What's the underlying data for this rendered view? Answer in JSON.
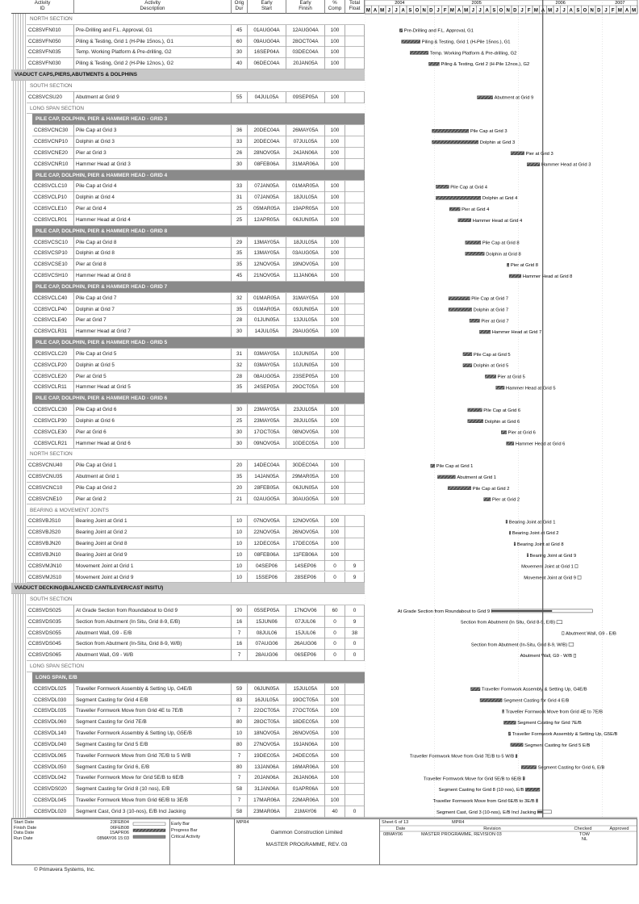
{
  "header": {
    "columns": [
      "Activity ID",
      "Activity Description",
      "Orig Dur",
      "Early Start",
      "Early Finish",
      "% Comp",
      "Total Float"
    ],
    "timeline": [
      {
        "year": "2004",
        "months": [
          "M",
          "A",
          "M",
          "J",
          "J",
          "A",
          "S",
          "O",
          "N",
          "D"
        ]
      },
      {
        "year": "2005",
        "months": [
          "J",
          "F",
          "M",
          "A",
          "M",
          "J",
          "J",
          "A",
          "S",
          "O",
          "N",
          "D"
        ]
      },
      {
        "year": "2006",
        "months": [
          "J",
          "F",
          "M",
          "A",
          "M",
          "J",
          "J",
          "A",
          "S",
          "O",
          "N",
          "D"
        ]
      },
      {
        "year": "2007",
        "months": [
          "J",
          "F",
          "M",
          "A",
          "M"
        ]
      }
    ]
  },
  "rows": [
    {
      "level": 3,
      "text": "NORTH SECTION"
    },
    {
      "id": "CC8SVFN010",
      "description": "Pre-Drilling and F.L. Approval, G1",
      "dur": 45,
      "start": "01AUG04A",
      "finish": "12AUG04A",
      "comp": 100,
      "float": null
    },
    {
      "id": "CC8SVFN050",
      "description": "Piling & Testing,  Grid 1 (H-Pile 15nos.), G1",
      "dur": 60,
      "start": "09AUG04A",
      "finish": "28OCT04A",
      "comp": 100,
      "float": null
    },
    {
      "id": "CC8SVFN035",
      "description": "Temp. Working Platform & Pre-drilling, G2",
      "dur": 30,
      "start": "16SEP04A",
      "finish": "03DEC04A",
      "comp": 100,
      "float": null
    },
    {
      "id": "CC8SVFN030",
      "description": "Piling & Testing, Grid 2 (H-Pile 12nos.), G2",
      "dur": 40,
      "start": "06DEC04A",
      "finish": "20JAN05A",
      "comp": 100,
      "float": null
    },
    {
      "level": 1,
      "text": "VIADUCT CAPS,PIERS,ABUTMENTS & DOLPHINS"
    },
    {
      "level": 3,
      "text": "SOUTH SECTION"
    },
    {
      "id": "CC8SVCSU20",
      "description": "Abutment at Grid 9",
      "dur": 55,
      "start": "04JUL05A",
      "finish": "09SEP05A",
      "comp": 100,
      "float": null
    },
    {
      "level": 3,
      "text": "LONG SPAN SECTION"
    },
    {
      "level": 2,
      "text": "PILE CAP, DOLPHIN, PIER & HAMMER HEAD - GRID 3"
    },
    {
      "id": "CC8SVCNC30",
      "description": "Pile Cap at Grid 3",
      "dur": 36,
      "start": "20DEC04A",
      "finish": "26MAY05A",
      "comp": 100,
      "float": null
    },
    {
      "id": "CC8SVCNP10",
      "description": "Dolphin at Grid 3",
      "dur": 33,
      "start": "20DEC04A",
      "finish": "07JUL05A",
      "comp": 100,
      "float": null
    },
    {
      "id": "CC8SVCNE20",
      "description": "Pier at Grid 3",
      "dur": 26,
      "start": "28NOV05A",
      "finish": "24JAN06A",
      "comp": 100,
      "float": null
    },
    {
      "id": "CC8SVCNR10",
      "description": "Hammer Head at Grid 3",
      "dur": 30,
      "start": "08FEB06A",
      "finish": "31MAR06A",
      "comp": 100,
      "float": null
    },
    {
      "level": 2,
      "text": "PILE CAP, DOLPHIN, PIER & HAMMER HEAD - GRID 4"
    },
    {
      "id": "CC8SVCLC10",
      "description": "Pile Cap at Grid 4",
      "dur": 33,
      "start": "07JAN05A",
      "finish": "01MAR05A",
      "comp": 100,
      "float": null
    },
    {
      "id": "CC8SVCLP10",
      "description": "Dolphin at Grid 4",
      "dur": 31,
      "start": "07JAN05A",
      "finish": "18JUL05A",
      "comp": 100,
      "float": null
    },
    {
      "id": "CC8SVCLE10",
      "description": "Pier at Grid 4",
      "dur": 25,
      "start": "05MAR05A",
      "finish": "19APR05A",
      "comp": 100,
      "float": null
    },
    {
      "id": "CC8SVCLR01",
      "description": "Hammer Head at Grid 4",
      "dur": 25,
      "start": "12APR05A",
      "finish": "06JUN05A",
      "comp": 100,
      "float": null
    },
    {
      "level": 2,
      "text": "PILE CAP, DOLPHIN, PIER & HAMMER HEAD - GRID 8"
    },
    {
      "id": "CC8SVCSC10",
      "description": "Pile Cap at Grid 8",
      "dur": 29,
      "start": "13MAY05A",
      "finish": "18JUL05A",
      "comp": 100,
      "float": null
    },
    {
      "id": "CC8SVCSP10",
      "description": "Dolphin at Grid 8",
      "dur": 35,
      "start": "13MAY05A",
      "finish": "03AUG05A",
      "comp": 100,
      "float": null
    },
    {
      "id": "CC8SVCSE10",
      "description": "Pier at Grid 8",
      "dur": 35,
      "start": "12NOV05A",
      "finish": "19NOV05A",
      "comp": 100,
      "float": null
    },
    {
      "id": "CC8SVCSH10",
      "description": "Hammer Head at Grid 8",
      "dur": 45,
      "start": "21NOV05A",
      "finish": "11JAN06A",
      "comp": 100,
      "float": null
    },
    {
      "level": 2,
      "text": "PILE CAP, DOLPHIN, PIER & HAMMER HEAD - GRID 7"
    },
    {
      "id": "CC8SVCLC40",
      "description": "Pile Cap at Grid 7",
      "dur": 32,
      "start": "01MAR05A",
      "finish": "31MAY05A",
      "comp": 100,
      "float": null
    },
    {
      "id": "CC8SVCLP40",
      "description": "Dolphin at Grid 7",
      "dur": 35,
      "start": "01MAR05A",
      "finish": "09JUN05A",
      "comp": 100,
      "float": null
    },
    {
      "id": "CC8SVCLE40",
      "description": "Pier at Grid 7",
      "dur": 28,
      "start": "01JUN05A",
      "finish": "13JUL05A",
      "comp": 100,
      "float": null
    },
    {
      "id": "CC8SVCLR31",
      "description": "Hammer Head at Grid 7",
      "dur": 30,
      "start": "14JUL05A",
      "finish": "29AUG05A",
      "comp": 100,
      "float": null
    },
    {
      "level": 2,
      "text": "PILE CAP, DOLPHIN, PIER & HAMMER HEAD - GRID 5"
    },
    {
      "id": "CC8SVCLC20",
      "description": "Pile Cap at Grid 5",
      "dur": 31,
      "start": "03MAY05A",
      "finish": "10JUN05A",
      "comp": 100,
      "float": null
    },
    {
      "id": "CC8SVCLP20",
      "description": "Dolphin at Grid 5",
      "dur": 32,
      "start": "03MAY05A",
      "finish": "10JUN05A",
      "comp": 100,
      "float": null
    },
    {
      "id": "CC8SVCLE20",
      "description": "Pier at Grid 5",
      "dur": 28,
      "start": "08AUG05A",
      "finish": "23SEP05A",
      "comp": 100,
      "float": null
    },
    {
      "id": "CC8SVCLR11",
      "description": "Hammer Head at Grid 5",
      "dur": 35,
      "start": "24SEP05A",
      "finish": "29OCT05A",
      "comp": 100,
      "float": null
    },
    {
      "level": 2,
      "text": "PILE CAP, DOLPHIN, PIER & HAMMER HEAD - GRID 6"
    },
    {
      "id": "CC8SVCLC30",
      "description": "Pile Cap at Grid 6",
      "dur": 30,
      "start": "23MAY05A",
      "finish": "23JUL05A",
      "comp": 100,
      "float": null
    },
    {
      "id": "CC8SVCLP30",
      "description": "Dolphin at Grid 6",
      "dur": 25,
      "start": "23MAY05A",
      "finish": "28JUL05A",
      "comp": 100,
      "float": null
    },
    {
      "id": "CC8SVCLE30",
      "description": "Pier at Grid 6",
      "dur": 30,
      "start": "17OCT05A",
      "finish": "08NOV05A",
      "comp": 100,
      "float": null
    },
    {
      "id": "CC8SVCLR21",
      "description": "Hammer Head at Grid 6",
      "dur": 30,
      "start": "09NOV05A",
      "finish": "10DEC05A",
      "comp": 100,
      "float": null
    },
    {
      "level": 3,
      "text": "NORTH SECTION"
    },
    {
      "id": "CC8SVCNU40",
      "description": "Pile Cap at Grid 1",
      "dur": 20,
      "start": "14DEC04A",
      "finish": "30DEC04A",
      "comp": 100,
      "float": null
    },
    {
      "id": "CC8SVCNU35",
      "description": "Abutment at Grid 1",
      "dur": 35,
      "start": "14JAN05A",
      "finish": "29MAR05A",
      "comp": 100,
      "float": null
    },
    {
      "id": "CC8SVCNC10",
      "description": "Pile Cap at Grid 2",
      "dur": 20,
      "start": "28FEB05A",
      "finish": "06JUN05A",
      "comp": 100,
      "float": null
    },
    {
      "id": "CC8SVCNE10",
      "description": "Pier at Grid 2",
      "dur": 21,
      "start": "02AUG05A",
      "finish": "30AUG05A",
      "comp": 100,
      "float": null
    },
    {
      "level": 3,
      "text": "BEARING & MOVEMENT JOINTS"
    },
    {
      "id": "CC8SVBJS10",
      "description": "Bearing Joint at Grid 1",
      "dur": 10,
      "start": "07NOV05A",
      "finish": "12NOV05A",
      "comp": 100,
      "float": null
    },
    {
      "id": "CC8SVBJS20",
      "description": "Bearing Joint at Grid 2",
      "dur": 10,
      "start": "22NOV05A",
      "finish": "26NOV05A",
      "comp": 100,
      "float": null
    },
    {
      "id": "CC8SVBJN20",
      "description": "Bearing Joint at Grid 8",
      "dur": 10,
      "start": "12DEC05A",
      "finish": "17DEC05A",
      "comp": 100,
      "float": null
    },
    {
      "id": "CC8SVBJN10",
      "description": "Bearing Joint at Grid 9",
      "dur": 10,
      "start": "08FEB06A",
      "finish": "11FEB06A",
      "comp": 100,
      "float": null
    },
    {
      "id": "CC8SVMJN10",
      "description": "Movement Joint at Grid 1",
      "dur": 10,
      "start": "04SEP06",
      "finish": "14SEP06",
      "comp": 0,
      "float": 9
    },
    {
      "id": "CC8SVMJS10",
      "description": "Movement Joint at Grid 9",
      "dur": 10,
      "start": "15SEP06",
      "finish": "28SEP06",
      "comp": 0,
      "float": 9
    },
    {
      "level": 1,
      "text": "VIADUCT DECKING(BALANCED CANTILEVER/CAST INSITU)"
    },
    {
      "level": 3,
      "text": "SOUTH SECTION"
    },
    {
      "id": "CC8SVDS025",
      "description": "At Grade Section from Roundabout to Grid 9",
      "dur": 90,
      "start": "05SEP05A",
      "finish": "17NOV06",
      "comp": 60,
      "float": 0
    },
    {
      "id": "CC8SVDS035",
      "description": "Section from Abutment (In Situ, Grid 8-9, E/B)",
      "dur": 16,
      "start": "15JUN06",
      "finish": "07JUL06",
      "comp": 0,
      "float": 9
    },
    {
      "id": "CC8SVDS055",
      "description": "Abutment Wall, G9 - E/B",
      "dur": 7,
      "start": "08JUL06",
      "finish": "15JUL06",
      "comp": 0,
      "float": 38
    },
    {
      "id": "CC8SVDS045",
      "description": "Section from Abutment (In-Situ, Grid 8-9, W/B)",
      "dur": 16,
      "start": "07AUG06",
      "finish": "26AUG06",
      "comp": 0,
      "float": 0
    },
    {
      "id": "CC8SVDS065",
      "description": "Abutment Wall, G9 - W/B",
      "dur": 7,
      "start": "28AUG06",
      "finish": "06SEP06",
      "comp": 0,
      "float": 0
    },
    {
      "level": 3,
      "text": "LONG SPAN SECTION"
    },
    {
      "level": 2,
      "text": "LONG SPAN, E/B"
    },
    {
      "id": "CC8SVDL025",
      "description": "Traveller Formwork Assembly & Setting Up, G4E/B",
      "dur": 59,
      "start": "06JUN05A",
      "finish": "15JUL05A",
      "comp": 100,
      "float": null
    },
    {
      "id": "CC8SVDL030",
      "description": "Segment Casting for Grid 4 E/B",
      "dur": 83,
      "start": "16JUL05A",
      "finish": "19OCT05A",
      "comp": 100,
      "float": null
    },
    {
      "id": "CC8SVDL035",
      "description": "Traveller Formwork Move from Grid 4E to 7E/B",
      "dur": 7,
      "start": "22OCT05A",
      "finish": "27OCT05A",
      "comp": 100,
      "float": null
    },
    {
      "id": "CC8SVDL060",
      "description": "Segment Casting for Grid 7E/B",
      "dur": 80,
      "start": "28OCT05A",
      "finish": "18DEC05A",
      "comp": 100,
      "float": null
    },
    {
      "id": "CC8SVDL140",
      "description": "Traveller Formwork Assembly & Setting Up, G5E/B",
      "dur": 10,
      "start": "18NOV05A",
      "finish": "26NOV05A",
      "comp": 100,
      "float": null
    },
    {
      "id": "CC8SVDL040",
      "description": "Segment Casting for Grid 5 E/B",
      "dur": 80,
      "start": "27NOV05A",
      "finish": "19JAN06A",
      "comp": 100,
      "float": null
    },
    {
      "id": "CC8SVDL065",
      "description": "Traveller Formwork Move from Grid 7E/B to 5 W/B",
      "dur": 7,
      "start": "19DEC05A",
      "finish": "24DEC05A",
      "comp": 100,
      "float": null
    },
    {
      "id": "CC8SVDL050",
      "description": "Segment Casting for Grid 6, E/B",
      "dur": 80,
      "start": "13JAN06A",
      "finish": "16MAR06A",
      "comp": 100,
      "float": null
    },
    {
      "id": "CC8SVDL042",
      "description": "Traveller Formwork Move for Grid 5E/B to 6E/B",
      "dur": 7,
      "start": "20JAN06A",
      "finish": "26JAN06A",
      "comp": 100,
      "float": null
    },
    {
      "id": "CC8SVDS020",
      "description": "Segment Casting for Grid 8 (10 nos), E/B",
      "dur": 58,
      "start": "31JAN06A",
      "finish": "01APR06A",
      "comp": 100,
      "float": null
    },
    {
      "id": "CC8SVDL045",
      "description": "Traveller Formwork Move from Grid 6E/B to 3E/B",
      "dur": 7,
      "start": "17MAR06A",
      "finish": "22MAR06A",
      "comp": 100,
      "float": null
    },
    {
      "id": "CC8SVDL020",
      "description": "Segment Cast, Grid 3 (10-nos), E/B Incl Jacking",
      "dur": 58,
      "start": "23MAR06A",
      "finish": "21MAY06",
      "comp": 40,
      "float": 0
    }
  ],
  "footer": {
    "dates": [
      {
        "label": "Start Date",
        "value": "23FEB04"
      },
      {
        "label": "Finish Date",
        "value": "06FEB08"
      },
      {
        "label": "Data Date",
        "value": "15APR06"
      },
      {
        "label": "Run Date",
        "value": "08MAY06 15:03"
      }
    ],
    "legend": [
      "Early Bar",
      "Progress Bar",
      "Critical Activity"
    ],
    "code": "MPR4",
    "company": "Gammon Construction Limited",
    "title": "MASTER PROGRAMME, REV. 03",
    "sheet": "Sheet 6 of 13",
    "code2": "MPR4",
    "revision_header": [
      "Date",
      "Revision",
      "Checked",
      "Approved"
    ],
    "revision_rows": [
      {
        "date": "08MAY06",
        "revision": "MASTER PROGRAMME, REVISION 03",
        "checked": "TOW"
      },
      {
        "checked": "NL"
      }
    ],
    "copyright": "© Primavera Systems, Inc."
  }
}
